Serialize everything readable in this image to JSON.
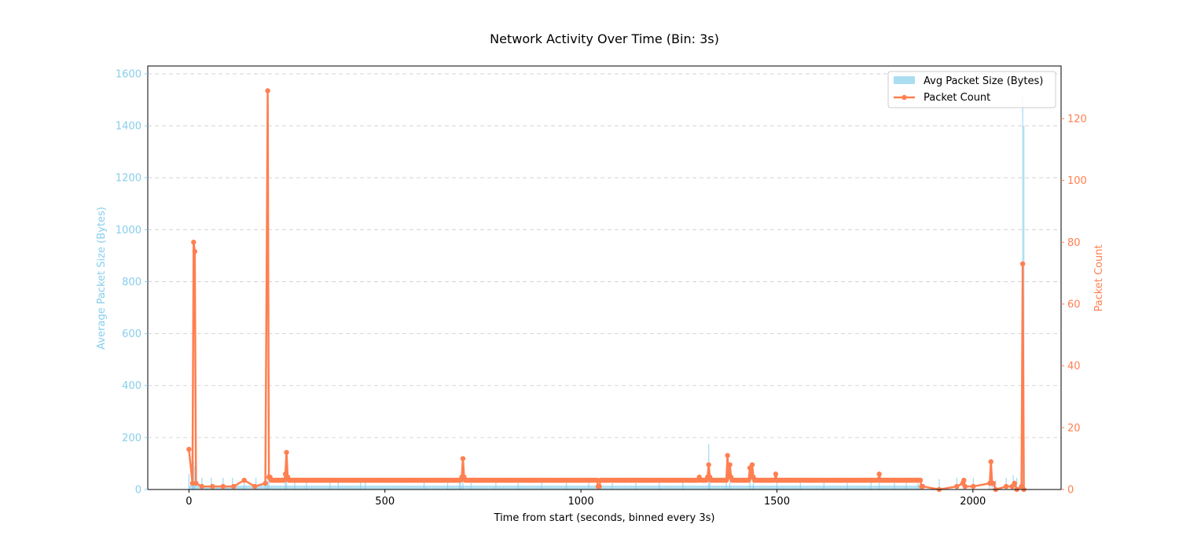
{
  "chart_data": {
    "type": "bar+line",
    "title": "Network Activity Over Time (Bin: 3s)",
    "xlabel": "Time from start (seconds, binned every 3s)",
    "ylabel_left": "Average Packet Size (Bytes)",
    "ylabel_right": "Packet Count",
    "xlim": [
      -105,
      2225
    ],
    "ylim_left": [
      0,
      1630
    ],
    "ylim_right": [
      0,
      137
    ],
    "xticks": [
      0,
      500,
      1000,
      1500,
      2000
    ],
    "yticks_left": [
      0,
      200,
      400,
      600,
      800,
      1000,
      1200,
      1400,
      1600
    ],
    "yticks_right": [
      0,
      20,
      40,
      60,
      80,
      100,
      120
    ],
    "grid": true,
    "legend_position": "top-right",
    "colors": {
      "bars": "#87ceeb",
      "line": "#ff7f50",
      "left_axis": "#87ceeb",
      "right_axis": "#ff7f50"
    },
    "series": [
      {
        "name": "Avg Packet Size (Bytes)",
        "type": "bar",
        "baseline_range": [
          1,
          1867
        ],
        "baseline_value": 15,
        "points": [
          [
            0,
            60
          ],
          [
            9,
            60
          ],
          [
            12,
            110
          ],
          [
            15,
            90
          ],
          [
            33,
            45
          ],
          [
            57,
            45
          ],
          [
            87,
            45
          ],
          [
            111,
            45
          ],
          [
            141,
            45
          ],
          [
            171,
            45
          ],
          [
            195,
            70
          ],
          [
            201,
            60
          ],
          [
            204,
            60
          ],
          [
            246,
            60
          ],
          [
            249,
            50
          ],
          [
            270,
            40
          ],
          [
            300,
            40
          ],
          [
            360,
            45
          ],
          [
            381,
            35
          ],
          [
            438,
            35
          ],
          [
            450,
            30
          ],
          [
            600,
            25
          ],
          [
            660,
            25
          ],
          [
            690,
            40
          ],
          [
            693,
            40
          ],
          [
            699,
            45
          ],
          [
            720,
            25
          ],
          [
            783,
            25
          ],
          [
            840,
            25
          ],
          [
            900,
            25
          ],
          [
            963,
            25
          ],
          [
            1020,
            25
          ],
          [
            1080,
            25
          ],
          [
            1140,
            25
          ],
          [
            1200,
            25
          ],
          [
            1260,
            25
          ],
          [
            1326,
            175
          ],
          [
            1329,
            40
          ],
          [
            1371,
            50
          ],
          [
            1380,
            50
          ],
          [
            1431,
            40
          ],
          [
            1440,
            40
          ],
          [
            1500,
            30
          ],
          [
            1560,
            25
          ],
          [
            1620,
            25
          ],
          [
            1680,
            25
          ],
          [
            1740,
            30
          ],
          [
            1761,
            40
          ],
          [
            1800,
            25
          ],
          [
            1830,
            25
          ],
          [
            1860,
            25
          ],
          [
            1914,
            40
          ],
          [
            1959,
            45
          ],
          [
            1977,
            45
          ],
          [
            2001,
            45
          ],
          [
            2043,
            40
          ],
          [
            2049,
            40
          ],
          [
            2058,
            35
          ],
          [
            2085,
            45
          ],
          [
            2103,
            55
          ],
          [
            2112,
            45
          ],
          [
            2127,
            1520
          ],
          [
            2130,
            1400
          ]
        ]
      },
      {
        "name": "Packet Count",
        "type": "line",
        "baseline_range": [
          210,
          1866
        ],
        "baseline_value": 3,
        "points": [
          [
            0,
            13
          ],
          [
            9,
            2
          ],
          [
            12,
            80
          ],
          [
            15,
            77
          ],
          [
            18,
            2
          ],
          [
            33,
            1
          ],
          [
            60,
            1
          ],
          [
            87,
            1
          ],
          [
            114,
            1
          ],
          [
            141,
            3
          ],
          [
            168,
            1
          ],
          [
            195,
            2
          ],
          [
            201,
            129
          ],
          [
            204,
            4
          ],
          [
            207,
            4
          ],
          [
            246,
            5
          ],
          [
            249,
            12
          ],
          [
            252,
            4
          ],
          [
            696,
            4
          ],
          [
            699,
            10
          ],
          [
            702,
            4
          ],
          [
            1044,
            1
          ],
          [
            1047,
            1
          ],
          [
            1302,
            4
          ],
          [
            1323,
            4
          ],
          [
            1326,
            8
          ],
          [
            1329,
            4
          ],
          [
            1374,
            11
          ],
          [
            1377,
            4
          ],
          [
            1380,
            8
          ],
          [
            1383,
            4
          ],
          [
            1431,
            7
          ],
          [
            1434,
            4
          ],
          [
            1437,
            8
          ],
          [
            1440,
            4
          ],
          [
            1497,
            5
          ],
          [
            1761,
            5
          ],
          [
            1866,
            3
          ],
          [
            1869,
            1
          ],
          [
            1872,
            1
          ],
          [
            1914,
            0
          ],
          [
            1959,
            1
          ],
          [
            1974,
            2
          ],
          [
            1977,
            3
          ],
          [
            1980,
            1
          ],
          [
            2001,
            1
          ],
          [
            2043,
            2
          ],
          [
            2046,
            9
          ],
          [
            2049,
            2
          ],
          [
            2052,
            2
          ],
          [
            2058,
            0
          ],
          [
            2085,
            1
          ],
          [
            2100,
            1
          ],
          [
            2106,
            2
          ],
          [
            2112,
            0
          ],
          [
            2124,
            1
          ],
          [
            2127,
            73
          ],
          [
            2130,
            0
          ]
        ]
      }
    ]
  }
}
